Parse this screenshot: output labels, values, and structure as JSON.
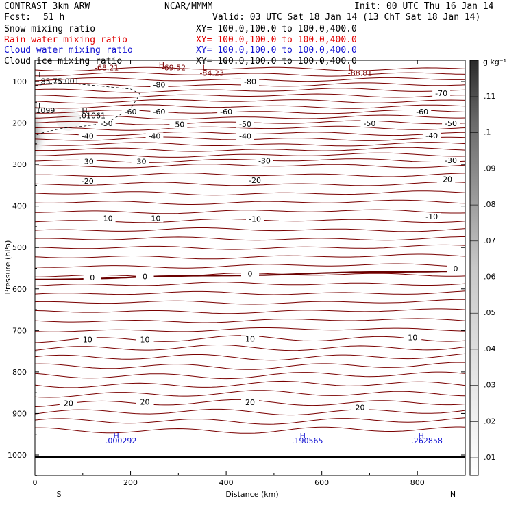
{
  "header": {
    "model": "CONTRAST  3km ARW",
    "org": "NCAR/MMMM",
    "init": "Init: 00 UTC Thu 16 Jan 14",
    "fcst_label": "Fcst:",
    "fcst_value": "51 h",
    "valid": "Valid: 03 UTC Sat 18 Jan 14 (13 ChT Sat 18 Jan 14)"
  },
  "legend": [
    {
      "name": "Snow mixing ratio",
      "xy": "XY= 100.0,100.0 to 100.0,400.0",
      "color": "#000000"
    },
    {
      "name": "Rain water mixing ratio",
      "xy": "XY= 100.0,100.0 to 100.0,400.0",
      "color": "#e00000"
    },
    {
      "name": "Cloud water mixing ratio",
      "xy": "XY= 100.0,100.0 to 100.0,400.0",
      "color": "#1010d0"
    },
    {
      "name": "Cloud ice mixing ratio",
      "xy": "XY= 100.0,100.0 to 100.0,400.0",
      "color": "#000000"
    }
  ],
  "chart_data": {
    "type": "cross-section contour",
    "xlabel": "Distance (km)",
    "ylabel": "Pressure (hPa)",
    "xlim": [
      0,
      900
    ],
    "ylim": [
      1050,
      50
    ],
    "xticks": [
      "0",
      "200",
      "400",
      "600",
      "800"
    ],
    "yticks": [
      "100",
      "200",
      "300",
      "400",
      "500",
      "600",
      "700",
      "800",
      "900",
      "1000"
    ],
    "x_end_left": "S",
    "x_end_right": "N",
    "colorbar": {
      "unit": "g kg⁻¹",
      "ticks": [
        ".01",
        ".02",
        ".03",
        ".04",
        ".05",
        ".06",
        ".07",
        ".08",
        ".09",
        ".1",
        ".11"
      ]
    },
    "temperature_contour_labels": [
      {
        "label": "-80",
        "x": 450,
        "p": 105
      },
      {
        "label": "-80",
        "x": 260,
        "p": 112
      },
      {
        "label": "-70",
        "x": 850,
        "p": 133
      },
      {
        "label": "-60",
        "x": 200,
        "p": 178
      },
      {
        "label": "-60",
        "x": 260,
        "p": 178
      },
      {
        "label": "-60",
        "x": 400,
        "p": 178
      },
      {
        "label": "-60",
        "x": 810,
        "p": 178
      },
      {
        "label": "-50",
        "x": 150,
        "p": 206
      },
      {
        "label": "-50",
        "x": 300,
        "p": 208
      },
      {
        "label": "-50",
        "x": 440,
        "p": 207
      },
      {
        "label": "-50",
        "x": 700,
        "p": 206
      },
      {
        "label": "-50",
        "x": 870,
        "p": 206
      },
      {
        "label": "-40",
        "x": 110,
        "p": 236
      },
      {
        "label": "-40",
        "x": 250,
        "p": 236
      },
      {
        "label": "-40",
        "x": 440,
        "p": 236
      },
      {
        "label": "-40",
        "x": 830,
        "p": 235
      },
      {
        "label": "-30",
        "x": 110,
        "p": 297
      },
      {
        "label": "-30",
        "x": 220,
        "p": 297
      },
      {
        "label": "-30",
        "x": 480,
        "p": 296
      },
      {
        "label": "-30",
        "x": 870,
        "p": 295
      },
      {
        "label": "-20",
        "x": 110,
        "p": 344
      },
      {
        "label": "-20",
        "x": 460,
        "p": 343
      },
      {
        "label": "-20",
        "x": 860,
        "p": 340
      },
      {
        "label": "-10",
        "x": 150,
        "p": 434
      },
      {
        "label": "-10",
        "x": 250,
        "p": 434
      },
      {
        "label": "-10",
        "x": 460,
        "p": 436
      },
      {
        "label": "-10",
        "x": 830,
        "p": 430
      },
      {
        "label": "0",
        "x": 120,
        "p": 577
      },
      {
        "label": "0",
        "x": 230,
        "p": 575
      },
      {
        "label": "0",
        "x": 450,
        "p": 568
      },
      {
        "label": "0",
        "x": 880,
        "p": 556
      },
      {
        "label": "10",
        "x": 110,
        "p": 727
      },
      {
        "label": "10",
        "x": 230,
        "p": 727
      },
      {
        "label": "10",
        "x": 450,
        "p": 725
      },
      {
        "label": "10",
        "x": 790,
        "p": 722
      },
      {
        "label": "20",
        "x": 70,
        "p": 880
      },
      {
        "label": "20",
        "x": 230,
        "p": 877
      },
      {
        "label": "20",
        "x": 450,
        "p": 878
      },
      {
        "label": "20",
        "x": 680,
        "p": 890
      }
    ],
    "extrema_labels": [
      {
        "label": "-68.21",
        "x": 150,
        "p": 73,
        "color": "#7a0000"
      },
      {
        "label": "H",
        "x": 265,
        "p": 65,
        "color": "#7a0000"
      },
      {
        "label": "-69.52",
        "x": 290,
        "p": 73,
        "color": "#7a0000"
      },
      {
        "label": "L",
        "x": 355,
        "p": 73,
        "color": "#7a0000"
      },
      {
        "label": "-84.23",
        "x": 370,
        "p": 86,
        "color": "#7a0000"
      },
      {
        "label": "L",
        "x": 660,
        "p": 73,
        "color": "#7a0000"
      },
      {
        "label": "-88.81",
        "x": 680,
        "p": 86,
        "color": "#7a0000"
      },
      {
        "label": "L",
        "x": 12,
        "p": 90,
        "color": "#000000"
      },
      {
        "label": "85.75",
        "x": 35,
        "p": 106,
        "color": "#000000"
      },
      {
        "label": ".001",
        "x": 75,
        "p": 106,
        "color": "#000000"
      },
      {
        "label": "H",
        "x": 6,
        "p": 165,
        "color": "#000000"
      },
      {
        "label": "1099",
        "x": 22,
        "p": 176,
        "color": "#000000"
      },
      {
        "label": "H",
        "x": 104,
        "p": 176,
        "color": "#000000"
      },
      {
        "label": ".01061",
        "x": 120,
        "p": 188,
        "color": "#000000"
      },
      {
        "label": "H",
        "x": 170,
        "p": 960,
        "color": "#1010d0"
      },
      {
        "label": ".000292",
        "x": 180,
        "p": 972,
        "color": "#1010d0"
      },
      {
        "label": "H",
        "x": 560,
        "p": 960,
        "color": "#1010d0"
      },
      {
        "label": ".190565",
        "x": 570,
        "p": 972,
        "color": "#1010d0"
      },
      {
        "label": "H",
        "x": 808,
        "p": 960,
        "color": "#1010d0"
      },
      {
        "label": ".262858",
        "x": 820,
        "p": 972,
        "color": "#1010d0"
      }
    ],
    "contour_color": "#7a0000",
    "freezing_line_color": "#6a0000",
    "surface_line_color": "#000000"
  }
}
